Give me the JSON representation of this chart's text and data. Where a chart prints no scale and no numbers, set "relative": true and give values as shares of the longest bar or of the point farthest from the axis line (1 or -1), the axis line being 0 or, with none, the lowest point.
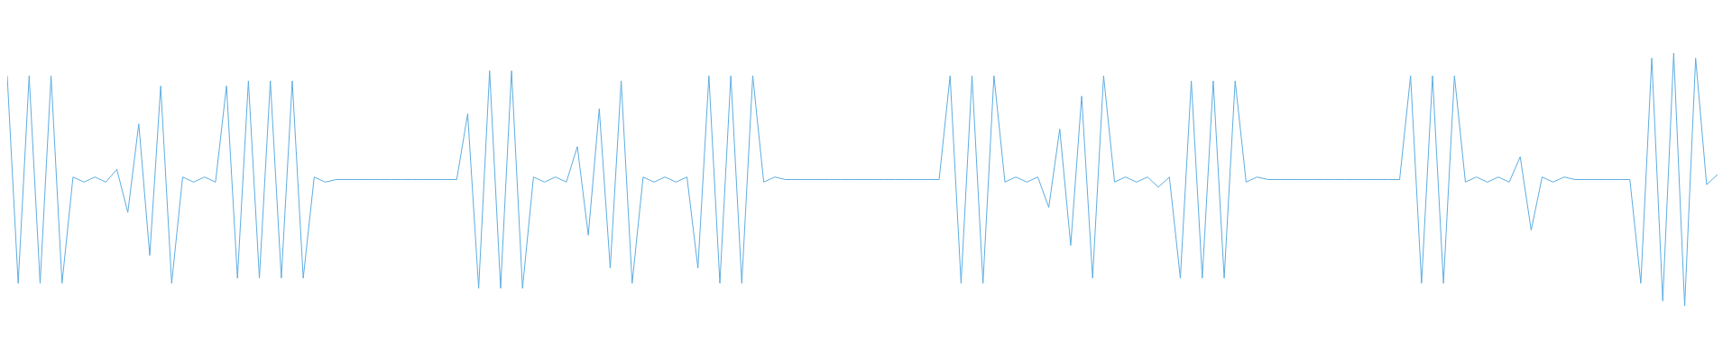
{
  "chart_data": {
    "type": "line",
    "relative": true,
    "categories": [
      null,
      null,
      null,
      null,
      null,
      null,
      null,
      null,
      null,
      null,
      null,
      null,
      null,
      null,
      null,
      null,
      null,
      null,
      null,
      null,
      null,
      null,
      null,
      null,
      null,
      null,
      null,
      null,
      null,
      null,
      null,
      null,
      null,
      null,
      null,
      null,
      null,
      null,
      null,
      null,
      null,
      null,
      null,
      null,
      null,
      null,
      null,
      null,
      null,
      null,
      null,
      null,
      null,
      null,
      null,
      null,
      null,
      null,
      null,
      null,
      null,
      null,
      null,
      null,
      null,
      null,
      null,
      null,
      null,
      null,
      null,
      null,
      null,
      null,
      null,
      null,
      null,
      null,
      null,
      null,
      null,
      null,
      null,
      null,
      null,
      null,
      null,
      null,
      null,
      null,
      null,
      null,
      null,
      null,
      null,
      null,
      null,
      null,
      null,
      null,
      null,
      null,
      null,
      null,
      null,
      null,
      null,
      null,
      null,
      null,
      null,
      null,
      null,
      null,
      null,
      null,
      null,
      null,
      null,
      null,
      null,
      null,
      null,
      null,
      null,
      null,
      null,
      null,
      null,
      null,
      null,
      null,
      null,
      null,
      null,
      null,
      null,
      null,
      null,
      null,
      null,
      null,
      null,
      null,
      null,
      null,
      null,
      null,
      null,
      null,
      null,
      null,
      null,
      null,
      null,
      null,
      null
    ],
    "series": [
      {
        "color": "#5dade2",
        "values": [
          0.91,
          0.09,
          0.91,
          0.09,
          0.91,
          0.09,
          0.51,
          0.49,
          0.51,
          0.49,
          0.54,
          0.37,
          0.72,
          0.2,
          0.87,
          0.09,
          0.51,
          0.49,
          0.51,
          0.49,
          0.87,
          0.11,
          0.89,
          0.11,
          0.89,
          0.11,
          0.89,
          0.11,
          0.51,
          0.49,
          0.5,
          0.5,
          0.5,
          0.5,
          0.5,
          0.5,
          0.5,
          0.5,
          0.5,
          0.5,
          0.5,
          0.5,
          0.76,
          0.07,
          0.93,
          0.07,
          0.93,
          0.07,
          0.51,
          0.49,
          0.51,
          0.49,
          0.63,
          0.28,
          0.78,
          0.15,
          0.89,
          0.09,
          0.51,
          0.49,
          0.51,
          0.49,
          0.51,
          0.15,
          0.91,
          0.09,
          0.91,
          0.09,
          0.91,
          0.49,
          0.51,
          0.5,
          0.5,
          0.5,
          0.5,
          0.5,
          0.5,
          0.5,
          0.5,
          0.5,
          0.5,
          0.5,
          0.5,
          0.5,
          0.5,
          0.5,
          0.91,
          0.09,
          0.91,
          0.09,
          0.91,
          0.49,
          0.51,
          0.49,
          0.51,
          0.39,
          0.7,
          0.24,
          0.83,
          0.11,
          0.91,
          0.49,
          0.51,
          0.49,
          0.51,
          0.47,
          0.51,
          0.11,
          0.89,
          0.11,
          0.89,
          0.11,
          0.89,
          0.49,
          0.51,
          0.5,
          0.5,
          0.5,
          0.5,
          0.5,
          0.5,
          0.5,
          0.5,
          0.5,
          0.5,
          0.5,
          0.5,
          0.5,
          0.91,
          0.09,
          0.91,
          0.09,
          0.91,
          0.49,
          0.51,
          0.49,
          0.51,
          0.49,
          0.59,
          0.3,
          0.51,
          0.49,
          0.51,
          0.5,
          0.5,
          0.5,
          0.5,
          0.5,
          0.5,
          0.09,
          0.98,
          0.02,
          1,
          0,
          0.98,
          0.48,
          0.52
        ]
      }
    ]
  }
}
